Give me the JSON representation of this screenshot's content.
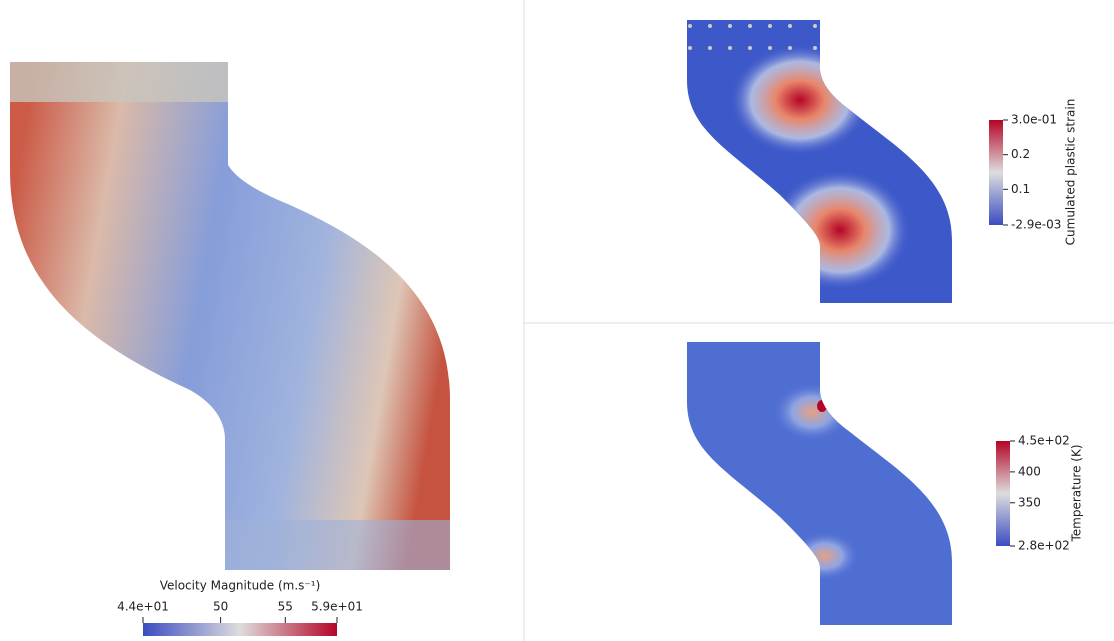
{
  "panels": [
    {
      "colorbar": {
        "title": "Velocity Magnitude (m.s⁻¹)",
        "orientation": "horizontal",
        "range": [
          44,
          59
        ],
        "ticks": [
          {
            "value": 44,
            "label": "4.4e+01"
          },
          50,
          55,
          {
            "value": 59,
            "label": "5.9e+01"
          }
        ]
      }
    },
    {
      "colorbar": {
        "title": "Cumulated plastic strain",
        "orientation": "vertical",
        "range": [
          -0.0029,
          0.3
        ],
        "ticks": [
          {
            "value": -0.0029,
            "label": "-2.9e-03"
          },
          0.1,
          0.2,
          {
            "value": 0.3,
            "label": "3.0e-01"
          }
        ]
      }
    },
    {
      "colorbar": {
        "title": "Temperature (K)",
        "orientation": "vertical",
        "range": [
          280,
          450
        ],
        "ticks": [
          {
            "value": 280,
            "label": "2.8e+02"
          },
          350,
          400,
          {
            "value": 450,
            "label": "4.5e+02"
          }
        ]
      }
    }
  ]
}
